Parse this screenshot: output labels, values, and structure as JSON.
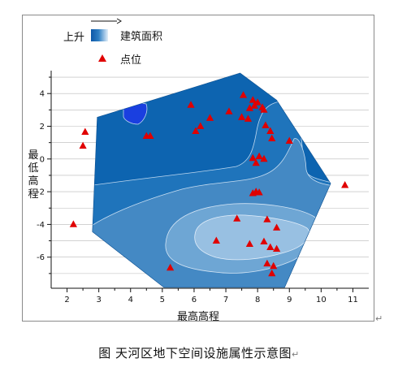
{
  "caption": "图  天河区地下空间设施属性示意图",
  "return_mark": "↵",
  "chart_data": {
    "type": "contour+scatter",
    "xlabel": "最高高程",
    "ylabel": "最低高程",
    "xlim": [
      1.5,
      11.5
    ],
    "ylim": [
      -7.9,
      5.3
    ],
    "xticks": [
      2,
      3,
      4,
      5,
      6,
      7,
      8,
      9,
      10,
      11
    ],
    "yticks": [
      -6,
      -4,
      -2,
      0,
      2,
      4
    ],
    "legend": {
      "contour_label": "上升",
      "contour_name": "建筑面积",
      "scatter_name": "点位",
      "placement": "top-left"
    },
    "colors": {
      "contour": [
        "#1a3fe0",
        "#0d64b0",
        "#1f74bb",
        "#4489c4",
        "#6ea6d4",
        "#98c0e2"
      ],
      "marker": "#e00000"
    },
    "hull": [
      [
        2.95,
        2.55
      ],
      [
        7.45,
        5.25
      ],
      [
        8.6,
        3.6
      ],
      [
        10.3,
        -1.5
      ],
      [
        8.85,
        -7.85
      ],
      [
        5.05,
        -7.85
      ],
      [
        2.8,
        -4.45
      ]
    ],
    "points": [
      [
        2.2,
        -4.0
      ],
      [
        2.5,
        0.8
      ],
      [
        2.57,
        1.65
      ],
      [
        4.5,
        1.4
      ],
      [
        4.62,
        1.4
      ],
      [
        5.9,
        3.3
      ],
      [
        6.05,
        1.7
      ],
      [
        6.2,
        2.0
      ],
      [
        6.5,
        2.5
      ],
      [
        7.1,
        2.9
      ],
      [
        7.5,
        2.55
      ],
      [
        7.55,
        3.9
      ],
      [
        7.7,
        2.45
      ],
      [
        7.75,
        3.1
      ],
      [
        7.85,
        3.6
      ],
      [
        7.9,
        3.25
      ],
      [
        8.0,
        3.45
      ],
      [
        8.15,
        3.15
      ],
      [
        8.2,
        3.0
      ],
      [
        7.85,
        0.05
      ],
      [
        7.95,
        -0.25
      ],
      [
        8.05,
        0.15
      ],
      [
        8.2,
        0.0
      ],
      [
        8.25,
        2.05
      ],
      [
        8.4,
        1.7
      ],
      [
        8.45,
        1.25
      ],
      [
        9.0,
        1.1
      ],
      [
        7.85,
        -2.1
      ],
      [
        7.95,
        -2.0
      ],
      [
        8.05,
        -2.05
      ],
      [
        7.35,
        -3.65
      ],
      [
        8.3,
        -3.7
      ],
      [
        6.7,
        -5.0
      ],
      [
        7.75,
        -5.2
      ],
      [
        8.2,
        -5.05
      ],
      [
        8.4,
        -5.4
      ],
      [
        8.6,
        -5.5
      ],
      [
        8.6,
        -4.2
      ],
      [
        8.3,
        -6.4
      ],
      [
        8.45,
        -7.0
      ],
      [
        8.5,
        -6.55
      ],
      [
        5.25,
        -6.65
      ],
      [
        10.75,
        -1.6
      ]
    ]
  }
}
